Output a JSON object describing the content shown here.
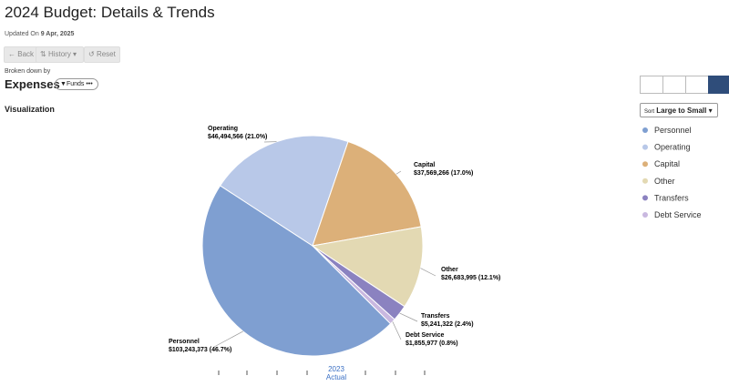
{
  "header": {
    "title": "2024 Budget: Details & Trends",
    "updated_label": "Updated On",
    "updated_date": "9 Apr, 2025"
  },
  "toolbar": {
    "back": "Back",
    "history": "History",
    "reset": "Reset"
  },
  "breakdown": {
    "label": "Broken down by",
    "value": "Expenses",
    "filter": "Funds"
  },
  "visualization_label": "Visualization",
  "sort": {
    "label": "Sort",
    "value": "Large to Small"
  },
  "timeline": {
    "year": "2023",
    "label": "Actual"
  },
  "chart_data": {
    "type": "pie",
    "categories": [
      "Personnel",
      "Operating",
      "Capital",
      "Other",
      "Transfers",
      "Debt Service"
    ],
    "values": [
      103243373,
      46494566,
      37569266,
      26683995,
      5241322,
      1855977
    ],
    "value_labels": [
      "$103,243,373 (46.7%)",
      "$46,494,566 (21.0%)",
      "$37,569,266 (17.0%)",
      "$26,683,995 (12.1%)",
      "$5,241,322 (2.4%)",
      "$1,855,977 (0.8%)"
    ],
    "colors": [
      "#7f9fd1",
      "#b8c8e8",
      "#dcb079",
      "#e3d9b3",
      "#8b82c0",
      "#c9b8e0"
    ]
  }
}
